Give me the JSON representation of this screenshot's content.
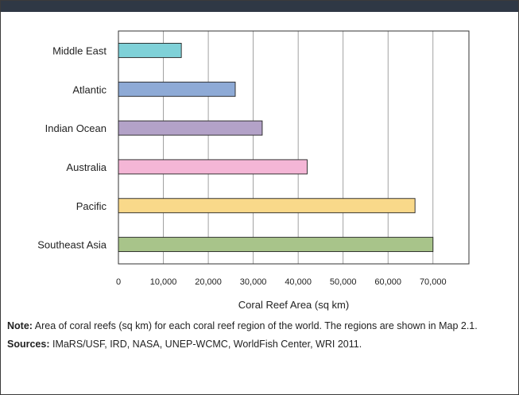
{
  "chart_data": {
    "type": "bar",
    "orientation": "horizontal",
    "categories": [
      "Middle East",
      "Atlantic",
      "Indian Ocean",
      "Australia",
      "Pacific",
      "Southeast Asia"
    ],
    "values": [
      14000,
      26000,
      32000,
      42000,
      66000,
      70000
    ],
    "colors": [
      "#7fd1d8",
      "#8eaad6",
      "#b3a2c8",
      "#f4b6d6",
      "#f9d98a",
      "#a8c48a"
    ],
    "xlabel": "Coral Reef Area (sq km)",
    "xlim": [
      0,
      78000
    ],
    "xticks": [
      0,
      10000,
      20000,
      30000,
      40000,
      50000,
      60000,
      70000
    ],
    "xtick_labels": [
      "0",
      "10,000",
      "20,000",
      "30,000",
      "40,000",
      "50,000",
      "60,000",
      "70,000"
    ],
    "grid": true
  },
  "notes": {
    "note_label": "Note:",
    "note_text": " Area of coral reefs (sq km) for each coral reef region of the world. The regions are shown in Map 2.1.",
    "sources_label": "Sources:",
    "sources_text": " IMaRS/USF, IRD, NASA, UNEP-WCMC, WorldFish Center, WRI 2011."
  }
}
